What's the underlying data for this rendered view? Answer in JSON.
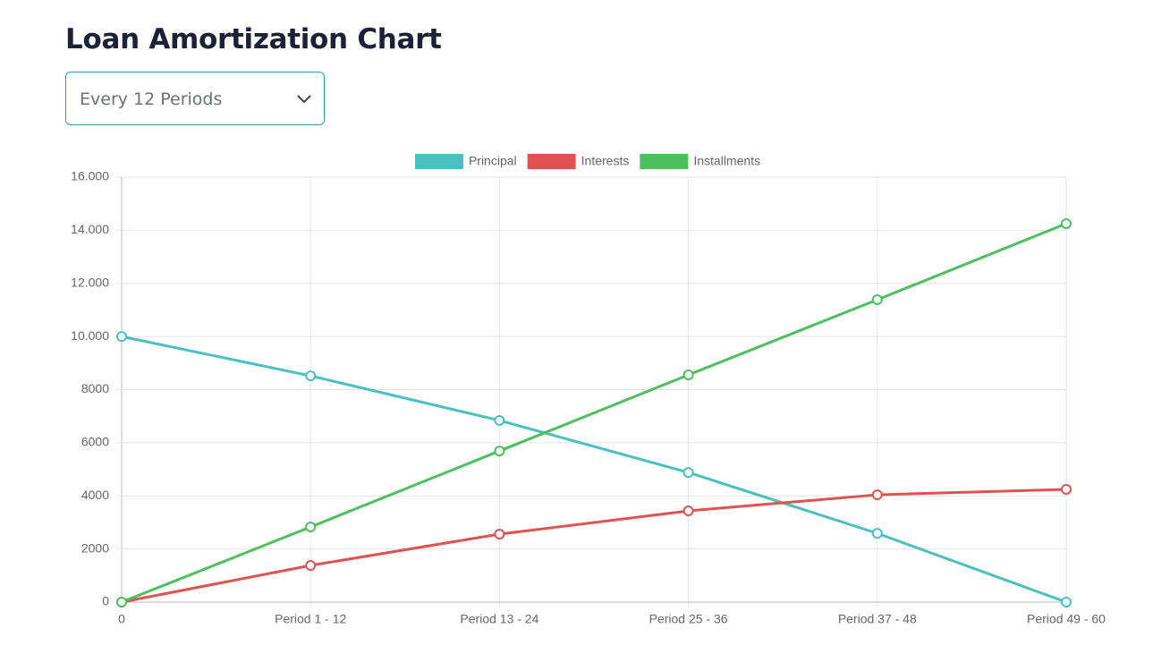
{
  "controls": {
    "period_select": "Every 12 Periods"
  },
  "chart_data": {
    "type": "line",
    "title": "Loan Amortization Chart",
    "categories": [
      "0",
      "Period 1 - 12",
      "Period 13 - 24",
      "Period 25 - 36",
      "Period 37 - 48",
      "Period 49 - 60"
    ],
    "series": [
      {
        "name": "Principal",
        "color": "#4bc0c0",
        "values": [
          10000,
          8520,
          6840,
          4880,
          2590,
          0
        ]
      },
      {
        "name": "Interests",
        "color": "#e05252",
        "values": [
          0,
          1380,
          2560,
          3435,
          4040,
          4245
        ]
      },
      {
        "name": "Installments",
        "color": "#4cc05c",
        "values": [
          0,
          2830,
          5690,
          8555,
          11385,
          14250
        ]
      }
    ],
    "ylim": [
      0,
      16000
    ],
    "yticks": [
      0,
      2000,
      4000,
      6000,
      8000,
      {
        "value": 10000,
        "label": "10.000"
      },
      {
        "value": 12000,
        "label": "12.000"
      },
      {
        "value": 14000,
        "label": "14.000"
      },
      {
        "value": 16000,
        "label": "16.000"
      }
    ],
    "grid": true,
    "legend": "top"
  }
}
